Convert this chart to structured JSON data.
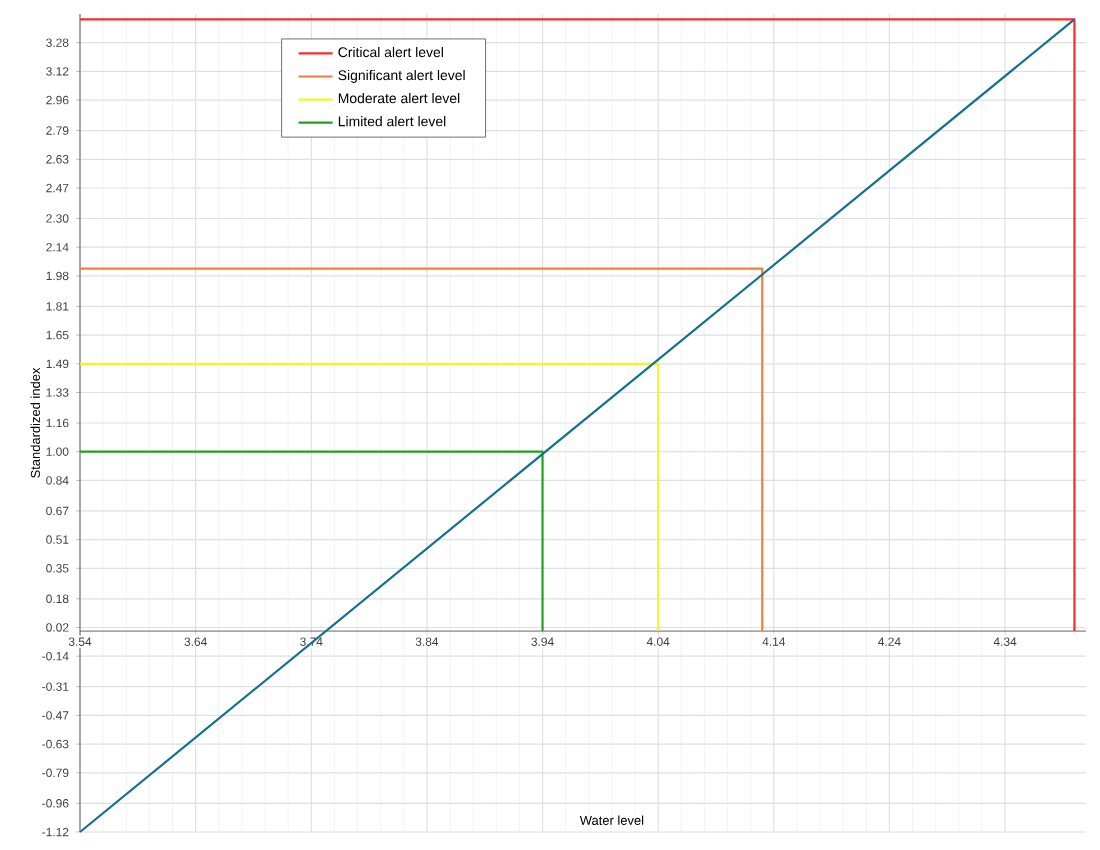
{
  "chart_data": {
    "type": "line",
    "xlabel": "Water level",
    "ylabel": "Standardized index",
    "xlim": [
      3.54,
      4.41
    ],
    "ylim": [
      -1.12,
      3.44
    ],
    "xticks": [
      3.54,
      3.64,
      3.74,
      3.84,
      3.94,
      4.04,
      4.14,
      4.24,
      4.34
    ],
    "yticks": [
      -1.12,
      -0.96,
      -0.79,
      -0.63,
      -0.47,
      -0.31,
      -0.14,
      0.02,
      0.18,
      0.35,
      0.51,
      0.67,
      0.84,
      {
        "value": 1.0,
        "label": "1.00"
      },
      1.16,
      1.33,
      1.49,
      1.65,
      1.81,
      1.98,
      2.14,
      {
        "value": 2.3,
        "label": "2.30"
      },
      2.47,
      2.63,
      2.79,
      2.96,
      3.12,
      3.28
    ],
    "grid": true,
    "legend": "top left",
    "series": [
      {
        "name": "Critical alert level",
        "color": "#ff2a2a",
        "x": [
          3.54,
          4.4,
          4.4
        ],
        "values": [
          3.41,
          3.41,
          0
        ]
      },
      {
        "name": "Significant alert level",
        "color": "#f57f3a",
        "x": [
          3.54,
          4.13,
          4.13
        ],
        "values": [
          2.02,
          2.02,
          0
        ]
      },
      {
        "name": "Moderate alert level",
        "color": "#f5f526",
        "x": [
          3.54,
          4.04,
          4.04
        ],
        "values": [
          1.49,
          1.49,
          0
        ]
      },
      {
        "name": "Limited alert level",
        "color": "#1fa31f",
        "x": [
          3.54,
          3.94,
          3.94
        ],
        "values": [
          1.0,
          1.0,
          0
        ]
      },
      {
        "color": "#14708f",
        "x": [
          3.54,
          4.4
        ],
        "values": [
          -1.12,
          3.41
        ]
      }
    ]
  }
}
